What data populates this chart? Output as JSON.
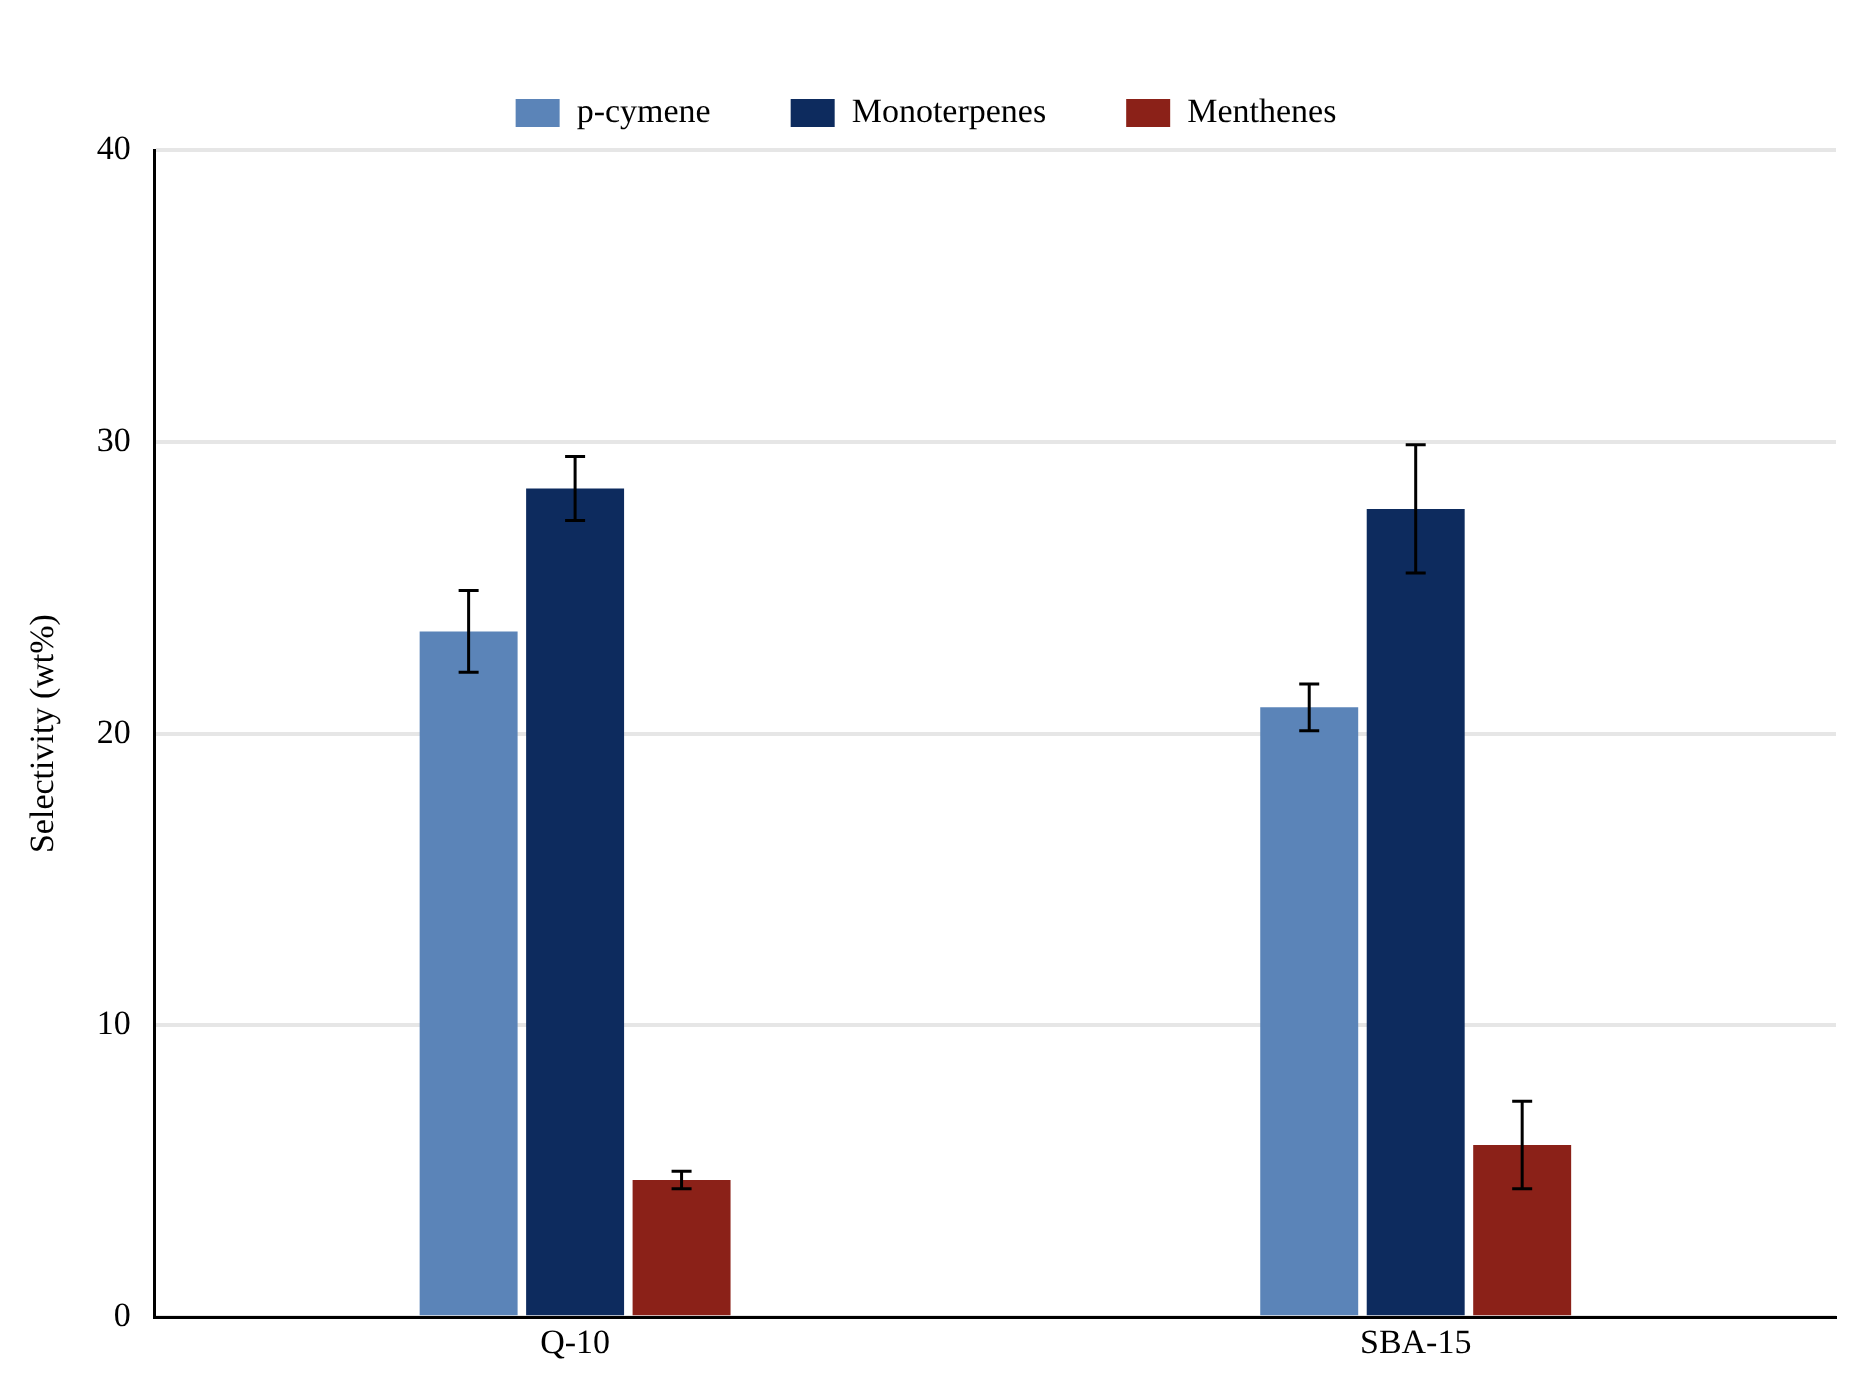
{
  "chart_data": {
    "type": "bar",
    "ylabel": "Selectivity (wt%)",
    "categories": [
      "Q-10",
      "SBA-15"
    ],
    "series": [
      {
        "name": "p-cymene",
        "color": "#5b84b8",
        "values": [
          23.5,
          20.9
        ],
        "errors": [
          1.4,
          0.8
        ]
      },
      {
        "name": "Monoterpenes",
        "color": "#0d2b5e",
        "values": [
          28.4,
          27.7
        ],
        "errors": [
          1.1,
          2.2
        ]
      },
      {
        "name": "Menthenes",
        "color": "#8b2118",
        "values": [
          4.7,
          5.9
        ],
        "errors": [
          0.3,
          1.5
        ]
      }
    ],
    "ylim": [
      0,
      40
    ],
    "yticks": [
      0,
      10,
      20,
      30,
      40
    ],
    "grid": "y",
    "legend": "top"
  }
}
